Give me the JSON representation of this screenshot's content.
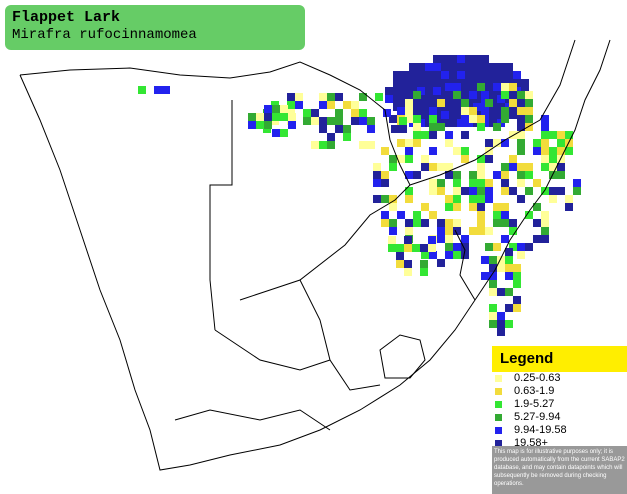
{
  "title": "Flappet Lark",
  "subtitle": "Mirafra rufocinnamomea",
  "legend": {
    "title": "Legend",
    "items": [
      {
        "label": "0.25-0.63",
        "color": "#ffff99"
      },
      {
        "label": "0.63-1.9",
        "color": "#f2dc3c"
      },
      {
        "label": "1.9-5.27",
        "color": "#33e633"
      },
      {
        "label": "5.27-9.94",
        "color": "#33aa33"
      },
      {
        "label": "9.94-19.58",
        "color": "#2222ee"
      },
      {
        "label": "19.58+",
        "color": "#22229a"
      }
    ]
  },
  "disclaimer": "This map is for illustrative purposes only; it is produced automatically from the current SABAP2 database, and may contain datapoints which will subsequently be removed during checking operations."
}
